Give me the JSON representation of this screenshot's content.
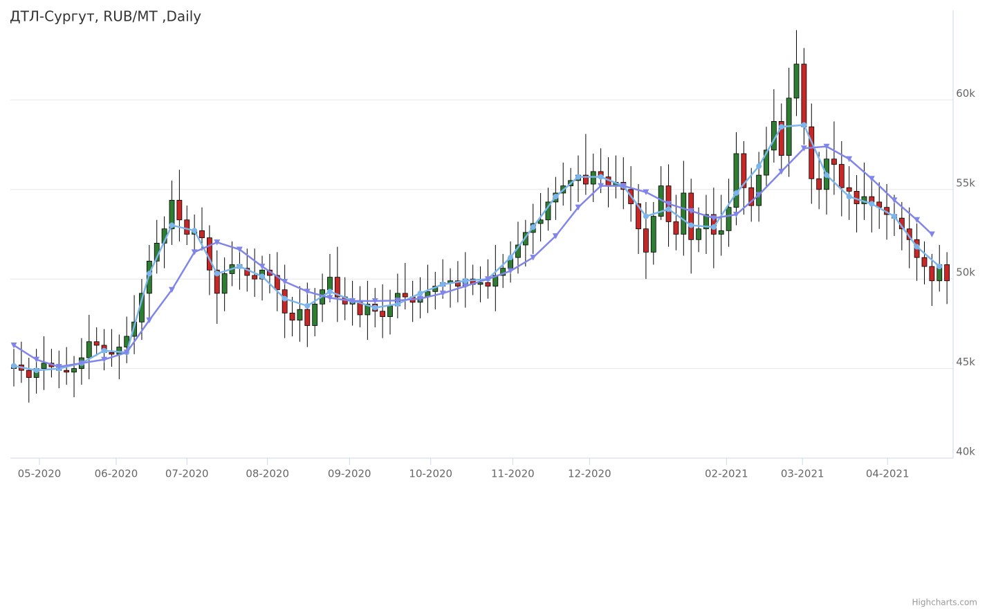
{
  "chart_data": {
    "type": "candlestick",
    "title": "ДТЛ-Сургут, RUB/MT ,Daily",
    "credits": "Highcharts.com",
    "xlim": [
      -0.46,
      124.54
    ],
    "xticks": [
      {
        "value": 3.4,
        "label": "05-2020"
      },
      {
        "value": 13.6,
        "label": "06-2020"
      },
      {
        "value": 23,
        "label": "07-2020"
      },
      {
        "value": 33.7,
        "label": "08-2020"
      },
      {
        "value": 44.6,
        "label": "09-2020"
      },
      {
        "value": 55.4,
        "label": "10-2020"
      },
      {
        "value": 66.3,
        "label": "11-2020"
      },
      {
        "value": 76.5,
        "label": "12-2020"
      },
      {
        "value": 94.7,
        "label": "02-2021"
      },
      {
        "value": 104.8,
        "label": "03-2021"
      },
      {
        "value": 116.1,
        "label": "04-2021"
      }
    ],
    "ylim": [
      40000,
      65000
    ],
    "yticks": [
      {
        "value": 40000,
        "label": "40k"
      },
      {
        "value": 45000,
        "label": "45k"
      },
      {
        "value": 50000,
        "label": "50k"
      },
      {
        "value": 55000,
        "label": "55k"
      },
      {
        "value": 60000,
        "label": "60k"
      }
    ],
    "grid": true,
    "series": [
      {
        "type": "candlestick",
        "up_color": "#2e7d32",
        "down_color": "#c62828",
        "border_color": "#000000",
        "open": [
          45000,
          45200,
          44900,
          44500,
          45000,
          45300,
          45100,
          44900,
          44800,
          45000,
          45600,
          46500,
          46300,
          45900,
          45800,
          46200,
          46800,
          47600,
          49200,
          51000,
          52000,
          52800,
          54400,
          53300,
          52500,
          52700,
          52300,
          50500,
          49200,
          50300,
          50800,
          50600,
          50200,
          50000,
          50500,
          50200,
          49400,
          48100,
          47700,
          48300,
          47400,
          48600,
          49400,
          50100,
          49000,
          48600,
          48800,
          48000,
          48600,
          48200,
          47900,
          48500,
          49200,
          49000,
          48700,
          49000,
          49300,
          49600,
          49800,
          49900,
          49600,
          50000,
          49700,
          49800,
          49600,
          50200,
          50600,
          51200,
          51900,
          52600,
          53100,
          53300,
          54300,
          54800,
          55200,
          55500,
          55800,
          55300,
          56000,
          55700,
          55200,
          55400,
          55000,
          54200,
          52800,
          51500,
          53500,
          55200,
          53200,
          52500,
          54800,
          52200,
          52800,
          53600,
          52500,
          52700,
          54000,
          57000,
          55100,
          54100,
          55800,
          57200,
          58800,
          56900,
          60100,
          62000,
          58500,
          55600,
          55000,
          56700,
          56400,
          55100,
          54900,
          54200,
          54600,
          54300,
          54000,
          53600,
          53400,
          52800,
          52200,
          51200,
          50700,
          49900,
          50800
        ],
        "high": [
          46100,
          46500,
          45600,
          46100,
          46800,
          46100,
          46000,
          46200,
          45700,
          46700,
          48000,
          47300,
          47200,
          47200,
          46900,
          47900,
          49100,
          50000,
          51900,
          53300,
          53500,
          55500,
          56100,
          54100,
          53600,
          54000,
          53000,
          51600,
          51200,
          52100,
          51500,
          51700,
          51700,
          51300,
          51400,
          51500,
          50800,
          49000,
          49600,
          49800,
          49500,
          50300,
          51400,
          51800,
          50100,
          49900,
          49600,
          49900,
          49500,
          49700,
          49400,
          50300,
          50900,
          49900,
          50100,
          50800,
          50400,
          51100,
          50600,
          51000,
          51500,
          50800,
          50700,
          51100,
          51900,
          51400,
          52100,
          53200,
          53300,
          54200,
          54800,
          55100,
          55700,
          56500,
          56200,
          56900,
          58100,
          57000,
          57300,
          56800,
          56900,
          56800,
          56300,
          55300,
          54300,
          54300,
          56300,
          56400,
          54700,
          56600,
          55600,
          54000,
          54700,
          55100,
          54700,
          55600,
          58200,
          57700,
          56200,
          57100,
          58500,
          60600,
          59800,
          61800,
          63900,
          62900,
          59800,
          57100,
          57400,
          58800,
          57700,
          56300,
          55800,
          56500,
          55500,
          55400,
          55300,
          54700,
          54300,
          54000,
          53100,
          52100,
          51400,
          51900,
          51500
        ],
        "low": [
          44000,
          44200,
          43100,
          43600,
          43800,
          44500,
          43900,
          44100,
          43400,
          44100,
          44400,
          45700,
          44900,
          45100,
          44400,
          45300,
          45800,
          46600,
          47800,
          50300,
          50600,
          51900,
          52100,
          51900,
          51500,
          51600,
          49100,
          47500,
          48200,
          49600,
          49400,
          49300,
          49000,
          48800,
          49200,
          48200,
          46700,
          46800,
          46500,
          46200,
          46800,
          47600,
          48700,
          47600,
          47700,
          47400,
          47300,
          46600,
          47300,
          46700,
          46900,
          47800,
          48300,
          47600,
          47800,
          48100,
          48300,
          48900,
          48400,
          48700,
          48400,
          49100,
          48700,
          48900,
          48200,
          49500,
          49800,
          50300,
          50700,
          51400,
          52100,
          52700,
          53300,
          54100,
          53800,
          54300,
          54700,
          54300,
          54800,
          54000,
          54500,
          53900,
          53200,
          51400,
          50000,
          50800,
          53300,
          51800,
          51600,
          51300,
          50300,
          51500,
          51400,
          50600,
          51300,
          51800,
          53000,
          53600,
          53200,
          53200,
          55200,
          56500,
          56000,
          55700,
          59100,
          57500,
          54200,
          53900,
          53600,
          54700,
          53500,
          53300,
          52600,
          53300,
          52600,
          52800,
          52200,
          52400,
          51600,
          50600,
          49900,
          49700,
          48500,
          49300,
          48600
        ],
        "close": [
          45200,
          44900,
          44500,
          45000,
          45300,
          45100,
          44900,
          44800,
          45000,
          45600,
          46500,
          46300,
          45900,
          45800,
          46200,
          46800,
          47600,
          49200,
          51000,
          52000,
          52800,
          54400,
          53300,
          52500,
          52700,
          52300,
          50500,
          49200,
          50300,
          50800,
          50600,
          50200,
          50000,
          50500,
          50200,
          49400,
          48100,
          47700,
          48300,
          47400,
          48600,
          49400,
          50100,
          49000,
          48600,
          48800,
          48000,
          48600,
          48200,
          47900,
          48500,
          49200,
          49000,
          48700,
          49000,
          49300,
          49600,
          49800,
          49900,
          49600,
          50000,
          49700,
          49800,
          49600,
          50200,
          50600,
          51200,
          51900,
          52600,
          53100,
          53300,
          54300,
          54800,
          55200,
          55500,
          55800,
          55300,
          56000,
          55700,
          55200,
          55400,
          55000,
          54200,
          52800,
          51500,
          53500,
          55200,
          53200,
          52500,
          54800,
          52200,
          52800,
          53600,
          52500,
          52700,
          54000,
          57000,
          55100,
          54100,
          55800,
          57200,
          58800,
          56900,
          60100,
          62000,
          58500,
          55600,
          55000,
          56700,
          56400,
          55100,
          54900,
          54200,
          54600,
          54300,
          54000,
          53600,
          53400,
          52800,
          52200,
          51200,
          50700,
          49900,
          50800,
          49900
        ]
      },
      {
        "type": "line",
        "color": "#7cb5ec",
        "marker": "circle",
        "x": [
          0,
          3,
          6,
          9,
          12,
          15,
          18,
          21,
          24,
          27,
          30,
          33,
          36,
          39,
          42,
          45,
          48,
          51,
          54,
          57,
          60,
          63,
          66,
          69,
          72,
          75,
          78,
          81,
          84,
          87,
          90,
          93,
          96,
          99,
          102,
          105,
          108,
          111,
          114,
          117,
          120,
          123
        ],
        "values": [
          45150,
          44900,
          45000,
          45300,
          46000,
          45900,
          50300,
          53000,
          52700,
          50300,
          50700,
          50150,
          48900,
          48500,
          49300,
          48800,
          48400,
          48600,
          49200,
          49700,
          49900,
          50000,
          51200,
          52900,
          54600,
          55700,
          55700,
          55200,
          53500,
          53900,
          53000,
          52900,
          54800,
          56300,
          58500,
          58600,
          55800,
          54600,
          54200,
          53500,
          51800,
          50700
        ]
      },
      {
        "type": "line",
        "color": "#8085e9",
        "marker": "triangle-down",
        "x": [
          0,
          3,
          6,
          9,
          12,
          15,
          18,
          21,
          24,
          27,
          30,
          33,
          36,
          39,
          42,
          45,
          48,
          51,
          54,
          57,
          60,
          63,
          66,
          69,
          72,
          75,
          78,
          81,
          84,
          87,
          90,
          93,
          96,
          99,
          102,
          105,
          108,
          111,
          114,
          117,
          120,
          122
        ],
        "values": [
          46300,
          45500,
          45100,
          45300,
          45500,
          45900,
          47700,
          49400,
          51500,
          52050,
          51650,
          50700,
          49850,
          49300,
          48950,
          48770,
          48770,
          48800,
          48900,
          49200,
          49600,
          50000,
          50450,
          51200,
          52400,
          54000,
          55200,
          55200,
          54850,
          54200,
          53800,
          53400,
          53600,
          54700,
          56000,
          57300,
          57400,
          56700,
          55600,
          54400,
          53300,
          52500
        ]
      }
    ]
  }
}
